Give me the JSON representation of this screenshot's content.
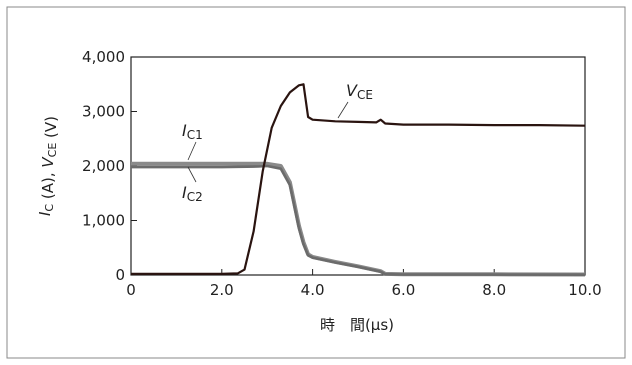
{
  "chart_data": {
    "type": "line",
    "xlabel": "時　間(μs)",
    "ylabel": "I_C (A), V_CE (V)",
    "xlim": [
      0,
      10.0
    ],
    "ylim": [
      0,
      4000
    ],
    "x_ticks": [
      "0",
      "2.0",
      "4.0",
      "6.0",
      "8.0",
      "10.0"
    ],
    "y_ticks": [
      "0",
      "1,000",
      "2,000",
      "3,000",
      "4,000"
    ],
    "grid": false,
    "series": [
      {
        "name": "VCE",
        "color": "#2a1410",
        "x": [
          0,
          2.0,
          2.35,
          2.5,
          2.7,
          2.9,
          3.1,
          3.3,
          3.5,
          3.7,
          3.8,
          3.9,
          4.0,
          4.5,
          5.0,
          5.4,
          5.5,
          5.6,
          6.0,
          7.0,
          8.0,
          9.0,
          10.0
        ],
        "y": [
          20,
          20,
          30,
          100,
          800,
          1900,
          2700,
          3100,
          3350,
          3480,
          3500,
          2900,
          2850,
          2820,
          2810,
          2800,
          2850,
          2780,
          2760,
          2760,
          2750,
          2750,
          2740
        ]
      },
      {
        "name": "IC1",
        "color": "#8a8a8a",
        "x": [
          0,
          1.0,
          2.0,
          2.8,
          3.0,
          3.3,
          3.5,
          3.7,
          3.8,
          3.9,
          4.0,
          4.5,
          5.0,
          5.5,
          5.6,
          6.0,
          8.0,
          10.0
        ],
        "y": [
          2040,
          2040,
          2040,
          2040,
          2040,
          2000,
          1700,
          900,
          600,
          380,
          330,
          240,
          160,
          70,
          20,
          15,
          12,
          10
        ]
      },
      {
        "name": "IC2",
        "color": "#6b6b6b",
        "x": [
          0,
          1.0,
          2.0,
          2.8,
          3.0,
          3.3,
          3.5,
          3.7,
          3.8,
          3.9,
          4.0,
          4.5,
          5.0,
          5.5,
          5.6,
          6.0,
          8.0,
          10.0
        ],
        "y": [
          1980,
          1980,
          1980,
          1990,
          2000,
          1950,
          1650,
          850,
          560,
          360,
          320,
          230,
          150,
          60,
          15,
          10,
          8,
          6
        ]
      }
    ],
    "annotations": [
      {
        "italic": "V",
        "sub": "CE",
        "target": "VCE"
      },
      {
        "italic": "I",
        "sub": "C1",
        "target": "IC1"
      },
      {
        "italic": "I",
        "sub": "C2",
        "target": "IC2"
      }
    ]
  }
}
